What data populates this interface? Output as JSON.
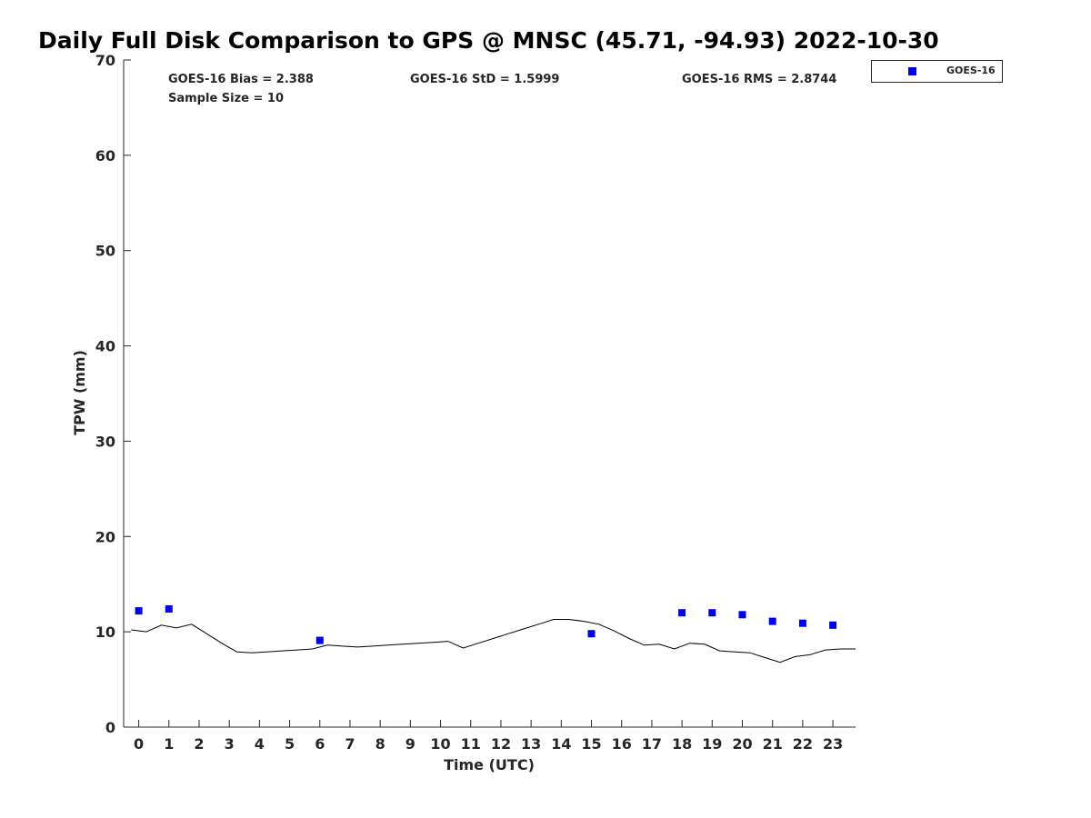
{
  "chart_data": {
    "type": "scatter",
    "title": "Daily Full Disk Comparison to GPS @ MNSC (45.71, -94.93) 2022-10-30",
    "xlabel": "Time (UTC)",
    "ylabel": "TPW (mm)",
    "xlim": [
      -0.5,
      23.75
    ],
    "ylim": [
      0,
      70
    ],
    "x_ticks": [
      0,
      1,
      2,
      3,
      4,
      5,
      6,
      7,
      8,
      9,
      10,
      11,
      12,
      13,
      14,
      15,
      16,
      17,
      18,
      19,
      20,
      21,
      22,
      23
    ],
    "y_ticks": [
      0,
      10,
      20,
      30,
      40,
      50,
      60,
      70
    ],
    "grid": false,
    "legend_position": "top-right",
    "stats": {
      "bias": "GOES-16 Bias = 2.388",
      "std": "GOES-16 StD = 1.5999",
      "rms": "GOES-16 RMS = 2.8744",
      "sample_size": "Sample Size = 10"
    },
    "series": [
      {
        "name": "GOES-16",
        "kind": "scatter",
        "color": "#0000ee",
        "x": [
          0,
          1,
          6,
          15,
          18,
          19,
          20,
          21,
          22,
          23
        ],
        "y": [
          12.2,
          12.4,
          9.1,
          9.8,
          12.0,
          12.0,
          11.8,
          11.1,
          10.9,
          10.7
        ]
      },
      {
        "kind": "line",
        "color": "#000000",
        "x": [
          -0.25,
          0.25,
          0.75,
          1.25,
          1.75,
          2.25,
          2.75,
          3.25,
          3.75,
          4.25,
          4.75,
          5.25,
          5.75,
          6.25,
          6.75,
          7.25,
          7.75,
          8.25,
          8.75,
          9.25,
          9.75,
          10.25,
          10.75,
          11.25,
          11.75,
          12.25,
          12.75,
          13.25,
          13.75,
          14.25,
          14.75,
          15.25,
          15.75,
          16.25,
          16.75,
          17.25,
          17.75,
          18.25,
          18.75,
          19.25,
          19.75,
          20.25,
          20.75,
          21.25,
          21.75,
          22.25,
          22.75,
          23.25,
          23.75
        ],
        "y": [
          10.2,
          10.0,
          10.7,
          10.4,
          10.8,
          9.8,
          8.8,
          7.9,
          7.8,
          7.9,
          8.0,
          8.1,
          8.2,
          8.6,
          8.5,
          8.4,
          8.5,
          8.6,
          8.7,
          8.8,
          8.9,
          9.0,
          8.3,
          8.8,
          9.3,
          9.8,
          10.3,
          10.8,
          11.3,
          11.3,
          11.1,
          10.8,
          10.1,
          9.3,
          8.6,
          8.7,
          8.2,
          8.8,
          8.7,
          8.0,
          7.9,
          7.8,
          7.3,
          6.8,
          7.4,
          7.6,
          8.1,
          8.2,
          8.2
        ]
      }
    ]
  }
}
